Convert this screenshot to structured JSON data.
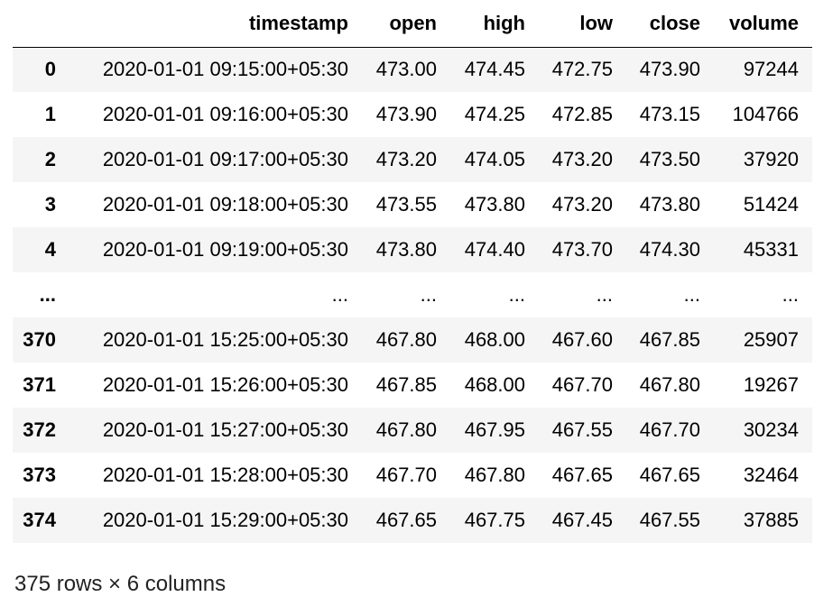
{
  "dataframe": {
    "columns": [
      "",
      "timestamp",
      "open",
      "high",
      "low",
      "close",
      "volume"
    ],
    "rows": [
      [
        "0",
        "2020-01-01 09:15:00+05:30",
        "473.00",
        "474.45",
        "472.75",
        "473.90",
        "97244"
      ],
      [
        "1",
        "2020-01-01 09:16:00+05:30",
        "473.90",
        "474.25",
        "472.85",
        "473.15",
        "104766"
      ],
      [
        "2",
        "2020-01-01 09:17:00+05:30",
        "473.20",
        "474.05",
        "473.20",
        "473.50",
        "37920"
      ],
      [
        "3",
        "2020-01-01 09:18:00+05:30",
        "473.55",
        "473.80",
        "473.20",
        "473.80",
        "51424"
      ],
      [
        "4",
        "2020-01-01 09:19:00+05:30",
        "473.80",
        "474.40",
        "473.70",
        "474.30",
        "45331"
      ],
      [
        "...",
        "...",
        "...",
        "...",
        "...",
        "...",
        "..."
      ],
      [
        "370",
        "2020-01-01 15:25:00+05:30",
        "467.80",
        "468.00",
        "467.60",
        "467.85",
        "25907"
      ],
      [
        "371",
        "2020-01-01 15:26:00+05:30",
        "467.85",
        "468.00",
        "467.70",
        "467.80",
        "19267"
      ],
      [
        "372",
        "2020-01-01 15:27:00+05:30",
        "467.80",
        "467.95",
        "467.55",
        "467.70",
        "30234"
      ],
      [
        "373",
        "2020-01-01 15:28:00+05:30",
        "467.70",
        "467.80",
        "467.65",
        "467.65",
        "32464"
      ],
      [
        "374",
        "2020-01-01 15:29:00+05:30",
        "467.65",
        "467.75",
        "467.45",
        "467.55",
        "37885"
      ]
    ],
    "shape_text": "375 rows × 6 columns"
  }
}
